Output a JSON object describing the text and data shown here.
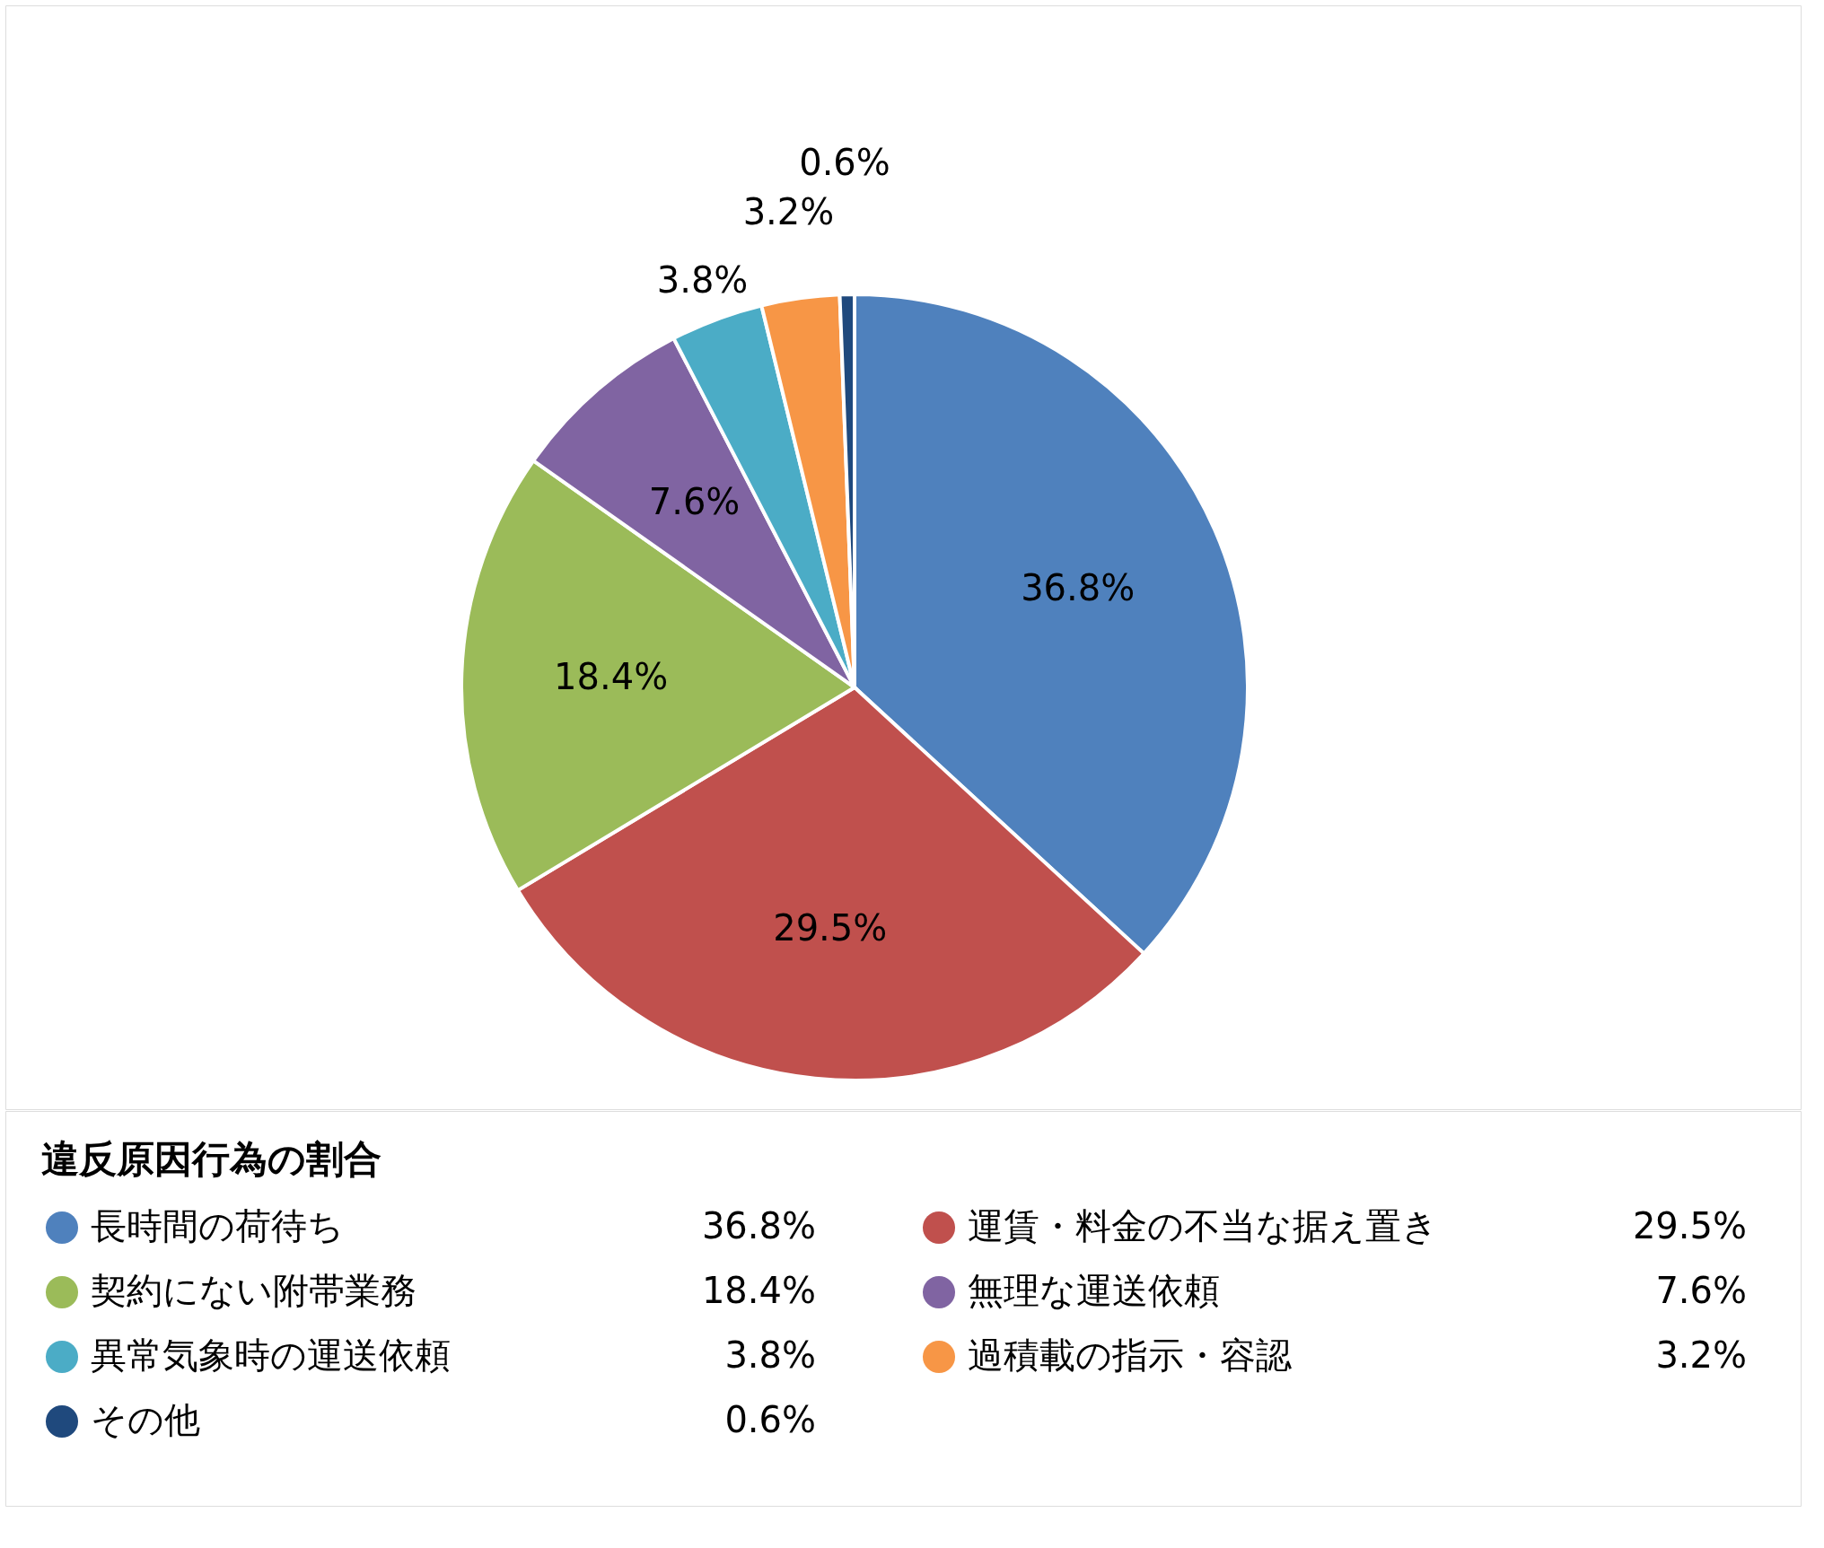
{
  "chart_data": {
    "type": "pie",
    "legend_title": "違反原因行為の割合",
    "categories": [
      "長時間の荷待ち",
      "運賃・料金の不当な据え置き",
      "契約にない附帯業務",
      "無理な運送依頼",
      "異常気象時の運送依頼",
      "過積載の指示・容認",
      "その他"
    ],
    "values": [
      36.8,
      29.5,
      18.4,
      7.6,
      3.8,
      3.2,
      0.6
    ],
    "value_labels": [
      "36.8%",
      "29.5%",
      "18.4%",
      "7.6%",
      "3.8%",
      "3.2%",
      "0.6%"
    ],
    "colors": [
      "#4f81bd",
      "#c0504d",
      "#9bbb59",
      "#8064a2",
      "#4bacc6",
      "#f79646",
      "#1f497d"
    ],
    "data_labels": true,
    "legend": "bottom"
  }
}
